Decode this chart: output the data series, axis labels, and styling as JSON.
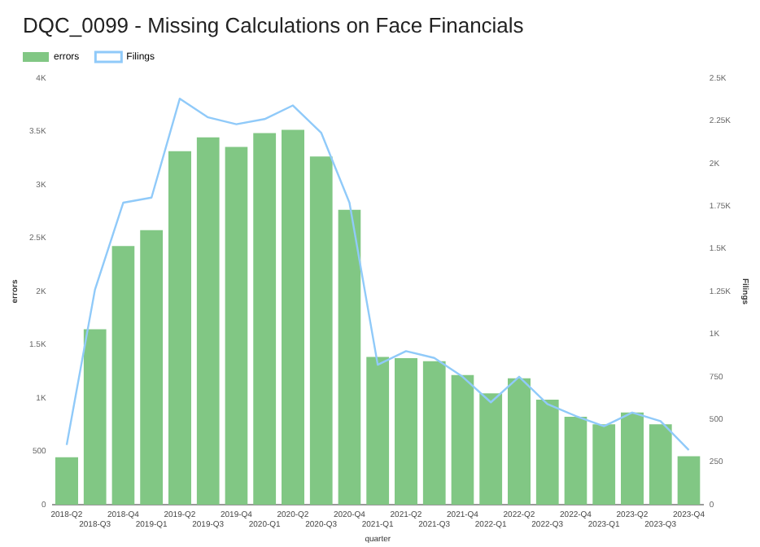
{
  "chart_data": {
    "type": "bar",
    "title": "DQC_0099 - Missing Calculations on Face Financials",
    "xlabel": "quarter",
    "ylabel": "errors",
    "y2label": "Filings",
    "categories": [
      "2018-Q2",
      "2018-Q3",
      "2018-Q4",
      "2019-Q1",
      "2019-Q2",
      "2019-Q3",
      "2019-Q4",
      "2020-Q1",
      "2020-Q2",
      "2020-Q3",
      "2020-Q4",
      "2021-Q1",
      "2021-Q2",
      "2021-Q3",
      "2021-Q4",
      "2022-Q1",
      "2022-Q2",
      "2022-Q3",
      "2022-Q4",
      "2023-Q1",
      "2023-Q2",
      "2023-Q3",
      "2023-Q4"
    ],
    "series": [
      {
        "name": "errors",
        "color": "#81c784",
        "values": [
          460,
          1660,
          2440,
          2590,
          3330,
          3460,
          3370,
          3500,
          3530,
          3280,
          2780,
          1400,
          1390,
          1360,
          1230,
          1060,
          1200,
          1000,
          840,
          770,
          880,
          770,
          470
        ]
      },
      {
        "name": "Filings",
        "type": "line",
        "axis": "y2",
        "color": "#90caf9",
        "values": [
          350,
          1260,
          1770,
          1800,
          2380,
          2270,
          2230,
          2260,
          2340,
          2180,
          1770,
          820,
          900,
          860,
          750,
          600,
          750,
          590,
          520,
          460,
          540,
          490,
          320
        ]
      }
    ],
    "ylim": [
      0,
      4000
    ],
    "yticks": [
      0,
      {
        "value": 500,
        "label": "500"
      },
      {
        "value": 1000,
        "label": "1K"
      },
      {
        "value": 1500,
        "label": "1.5K"
      },
      {
        "value": 2000,
        "label": "2K"
      },
      {
        "value": 2500,
        "label": "2.5K"
      },
      {
        "value": 3000,
        "label": "3K"
      },
      {
        "value": 3500,
        "label": "3.5K"
      },
      {
        "value": 4000,
        "label": "4K"
      }
    ],
    "y2lim": [
      0,
      2500
    ],
    "y2ticks": [
      0,
      250,
      500,
      750,
      {
        "value": 1000,
        "label": "1K"
      },
      {
        "value": 1250,
        "label": "1.25K"
      },
      {
        "value": 1500,
        "label": "1.5K"
      },
      {
        "value": 1750,
        "label": "1.75K"
      },
      {
        "value": 2000,
        "label": "2K"
      },
      {
        "value": 2250,
        "label": "2.25K"
      },
      {
        "value": 2500,
        "label": "2.5K"
      }
    ],
    "grid": false,
    "legend": "top left",
    "marker": "none"
  }
}
